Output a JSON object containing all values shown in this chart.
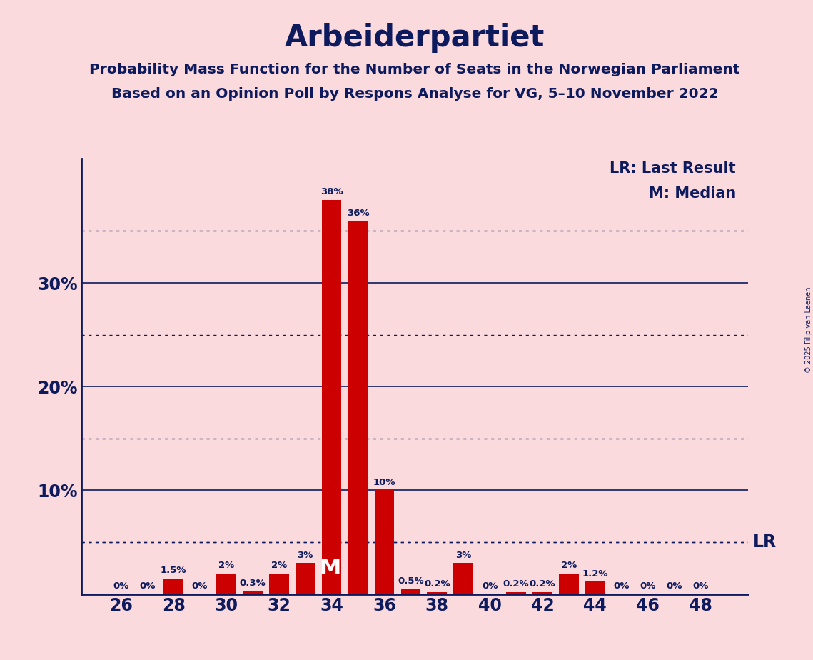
{
  "title": "Arbeiderpartiet",
  "subtitle1": "Probability Mass Function for the Number of Seats in the Norwegian Parliament",
  "subtitle2": "Based on an Opinion Poll by Respons Analyse for VG, 5–10 November 2022",
  "legend_lr": "LR: Last Result",
  "legend_m": "M: Median",
  "copyright": "© 2025 Filip van Laenen",
  "seats": [
    26,
    27,
    28,
    29,
    30,
    31,
    32,
    33,
    34,
    35,
    36,
    37,
    38,
    39,
    40,
    41,
    42,
    43,
    44,
    45,
    46,
    47,
    48
  ],
  "probabilities": [
    0.0,
    0.0,
    1.5,
    0.0,
    2.0,
    0.3,
    2.0,
    3.0,
    38.0,
    36.0,
    10.0,
    0.5,
    0.2,
    3.0,
    0.0,
    0.2,
    0.2,
    2.0,
    1.2,
    0.0,
    0.0,
    0.0,
    0.0
  ],
  "bar_color": "#cc0000",
  "background_color": "#fadadd",
  "text_color": "#0d1b5e",
  "median_seat": 34,
  "lr_value": 5.0,
  "ylim_max": 42,
  "solid_yticks": [
    10,
    20,
    30
  ],
  "dotted_yticks": [
    5,
    15,
    25,
    35
  ],
  "bar_labels": {
    "26": "0%",
    "27": "0%",
    "28": "1.5%",
    "29": "0%",
    "30": "2%",
    "31": "0.3%",
    "32": "2%",
    "33": "3%",
    "34": "38%",
    "35": "36%",
    "36": "10%",
    "37": "0.5%",
    "38": "0.2%",
    "39": "3%",
    "40": "0%",
    "41": "0.2%",
    "42": "0.2%",
    "43": "2%",
    "44": "1.2%",
    "45": "0%",
    "46": "0%",
    "47": "0%",
    "48": "0%"
  }
}
